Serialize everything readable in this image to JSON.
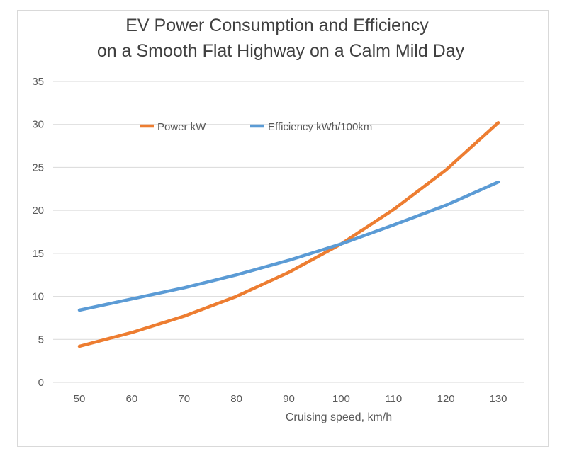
{
  "chart_data": {
    "type": "line",
    "title_lines": [
      "EV Power Consumption and Efficiency",
      "on a Smooth Flat Highway on a Calm Mild Day"
    ],
    "xlabel": "Cruising speed, km/h",
    "ylabel": "",
    "x": [
      50,
      60,
      70,
      80,
      90,
      100,
      110,
      120,
      130
    ],
    "x_tick_labels": [
      "50",
      "60",
      "70",
      "80",
      "90",
      "100",
      "110",
      "120",
      "130"
    ],
    "ylim": [
      0,
      35
    ],
    "y_ticks": [
      0,
      5,
      10,
      15,
      20,
      25,
      30,
      35
    ],
    "y_tick_labels": [
      "0",
      "5",
      "10",
      "15",
      "20",
      "25",
      "30",
      "35"
    ],
    "grid": "horizontal",
    "legend_position": "top-center",
    "series": [
      {
        "name": "Power kW",
        "color": "#ed7d31",
        "values": [
          4.2,
          5.8,
          7.7,
          10.0,
          12.8,
          16.1,
          20.1,
          24.7,
          30.2
        ]
      },
      {
        "name": "Efficiency kWh/100km",
        "color": "#5b9bd5",
        "values": [
          8.4,
          9.7,
          11.0,
          12.5,
          14.2,
          16.1,
          18.3,
          20.6,
          23.3
        ]
      }
    ]
  }
}
